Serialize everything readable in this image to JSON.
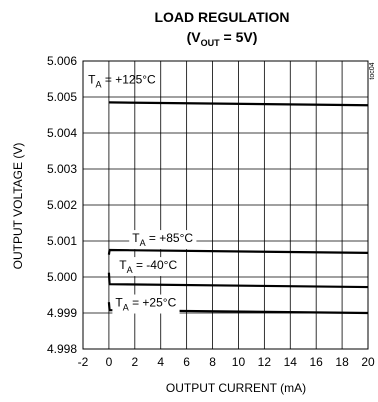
{
  "chart_data": {
    "type": "line",
    "title": "LOAD REGULATION",
    "subtitle": {
      "prefix": "(V",
      "sub": "OUT",
      "suffix": " = 5V)"
    },
    "xlabel": "OUTPUT CURRENT (mA)",
    "ylabel": "OUTPUT VOLTAGE (V)",
    "xlim": [
      -2,
      20
    ],
    "ylim": [
      4.998,
      5.006
    ],
    "x_ticks": [
      "-2",
      "0",
      "2",
      "4",
      "6",
      "8",
      "10",
      "12",
      "14",
      "16",
      "18",
      "20"
    ],
    "y_ticks": [
      "5.006",
      "5.005",
      "5.004",
      "5.003",
      "5.002",
      "5.001",
      "5.000",
      "4.999",
      "4.998"
    ],
    "grid": true,
    "figure_code": "toc04",
    "series": [
      {
        "label_prefix": "T",
        "label_sub": "A",
        "label_suffix": " = +125°C",
        "x": [
          0,
          20
        ],
        "y": [
          5.00485,
          5.00477
        ]
      },
      {
        "label_prefix": "T",
        "label_sub": "A",
        "label_suffix": " = +85°C",
        "x": [
          0,
          0.05,
          20
        ],
        "y": [
          5.00062,
          5.00075,
          5.00067
        ]
      },
      {
        "label_prefix": "T",
        "label_sub": "A",
        "label_suffix": " = -40°C",
        "x": [
          0,
          0.05,
          20
        ],
        "y": [
          5.00012,
          4.9998,
          4.99972
        ]
      },
      {
        "label_prefix": "T",
        "label_sub": "A",
        "label_suffix": " = +25°C",
        "x": [
          0,
          0.05,
          20
        ],
        "y": [
          4.9993,
          4.99908,
          4.999
        ]
      }
    ]
  }
}
